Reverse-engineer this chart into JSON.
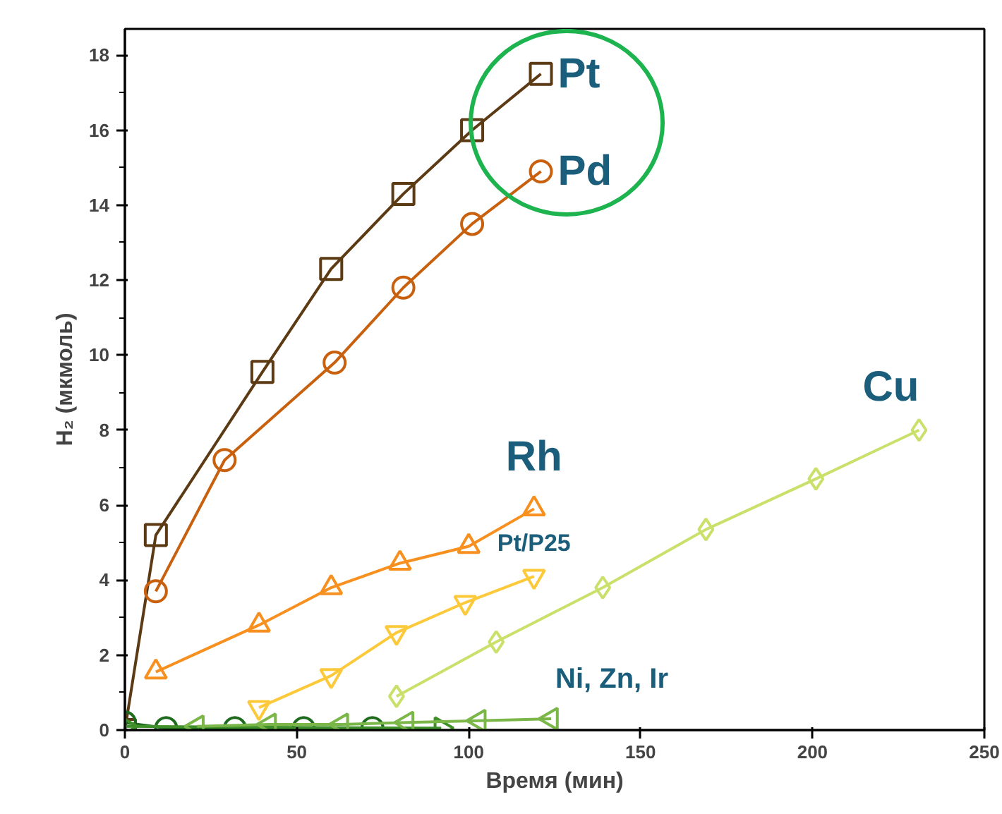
{
  "chart_data": {
    "type": "line",
    "xlabel": "Время (мин)",
    "ylabel": "H₂ (мкмоль)",
    "xlim": [
      0,
      250
    ],
    "ylim": [
      0,
      18.7
    ],
    "xticks": [
      0,
      50,
      100,
      150,
      200,
      250
    ],
    "yticks": [
      0,
      2,
      4,
      6,
      8,
      10,
      12,
      14,
      16,
      18
    ],
    "grid": false,
    "line_style": "solid",
    "series": [
      {
        "name": "Pt",
        "color": "#5c3a14",
        "marker": "square",
        "x": [
          0,
          9,
          40,
          60,
          81,
          101,
          121
        ],
        "values": [
          0,
          5.2,
          9.55,
          12.3,
          14.3,
          16.0,
          17.5
        ]
      },
      {
        "name": "Pd",
        "color": "#c8600e",
        "marker": "circle",
        "x": [
          9,
          29,
          61,
          81,
          101,
          121
        ],
        "values": [
          3.7,
          7.2,
          9.8,
          11.8,
          13.5,
          14.9
        ]
      },
      {
        "name": "Rh",
        "color": "#f7901e",
        "marker": "triangle",
        "x": [
          9,
          39,
          60,
          80,
          100,
          119
        ],
        "values": [
          1.55,
          2.8,
          3.8,
          4.45,
          4.9,
          5.9
        ]
      },
      {
        "name": "Pt/P25",
        "color": "#fcc93a",
        "marker": "triangle",
        "x": [
          39,
          60,
          79,
          99,
          119
        ],
        "values": [
          0.6,
          1.45,
          2.6,
          3.4,
          4.1
        ]
      },
      {
        "name": "Cu",
        "color": "#c9e06a",
        "marker": "diamond",
        "x": [
          79,
          108,
          139,
          169,
          201,
          231
        ],
        "values": [
          0.9,
          2.35,
          3.8,
          5.35,
          6.7,
          8.0
        ]
      },
      {
        "color": "#1e6b1e",
        "marker": "circle",
        "x": [
          0,
          12,
          32,
          52,
          72
        ],
        "values": [
          0.2,
          0.05,
          0.05,
          0.05,
          0.05
        ]
      },
      {
        "color": "#3f8f2a",
        "marker": "triangle",
        "x": [
          0,
          92
        ],
        "values": [
          0.1,
          0.05
        ]
      },
      {
        "color": "#7ab648",
        "marker": "triangle",
        "x": [
          21,
          42,
          63,
          82,
          103,
          124
        ],
        "values": [
          0.1,
          0.15,
          0.15,
          0.2,
          0.25,
          0.3
        ]
      }
    ],
    "annotations": [
      "Ni, Zn, Ir"
    ]
  }
}
